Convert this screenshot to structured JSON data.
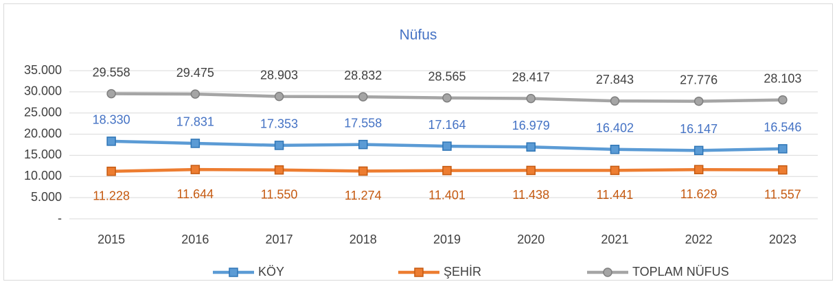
{
  "chart_data": {
    "type": "line",
    "title": "Nüfus",
    "categories": [
      "2015",
      "2016",
      "2017",
      "2018",
      "2019",
      "2020",
      "2021",
      "2022",
      "2023"
    ],
    "series": [
      {
        "name": "KÖY",
        "color": "#5b9bd5",
        "marker": "square",
        "label_color": "#4472c4",
        "label_position": "above",
        "values": [
          18330,
          17831,
          17353,
          17558,
          17164,
          16979,
          16402,
          16147,
          16546
        ],
        "value_labels": [
          "18.330",
          "17.831",
          "17.353",
          "17.558",
          "17.164",
          "16.979",
          "16.402",
          "16.147",
          "16.546"
        ]
      },
      {
        "name": "ŞEHİR",
        "color": "#ed7d31",
        "marker": "square",
        "label_color": "#c55a11",
        "label_position": "below",
        "values": [
          11228,
          11644,
          11550,
          11274,
          11401,
          11438,
          11441,
          11629,
          11557
        ],
        "value_labels": [
          "11.228",
          "11.644",
          "11.550",
          "11.274",
          "11.401",
          "11.438",
          "11.441",
          "11.629",
          "11.557"
        ]
      },
      {
        "name": "TOPLAM NÜFUS",
        "color": "#a5a5a5",
        "marker": "circle",
        "label_color": "#404040",
        "label_position": "above",
        "values": [
          29558,
          29475,
          28903,
          28832,
          28565,
          28417,
          27843,
          27776,
          28103
        ],
        "value_labels": [
          "29.558",
          "29.475",
          "28.903",
          "28.832",
          "28.565",
          "28.417",
          "27.843",
          "27.776",
          "28.103"
        ]
      }
    ],
    "ylim": [
      0,
      35000
    ],
    "yticks": [
      {
        "value": 0,
        "label": "-"
      },
      {
        "value": 5000,
        "label": "5.000"
      },
      {
        "value": 10000,
        "label": "10.000"
      },
      {
        "value": 15000,
        "label": "15.000"
      },
      {
        "value": 20000,
        "label": "20.000"
      },
      {
        "value": 25000,
        "label": "25.000"
      },
      {
        "value": 30000,
        "label": "30.000"
      },
      {
        "value": 35000,
        "label": "35.000"
      }
    ],
    "grid": true,
    "legend": "bottom"
  }
}
